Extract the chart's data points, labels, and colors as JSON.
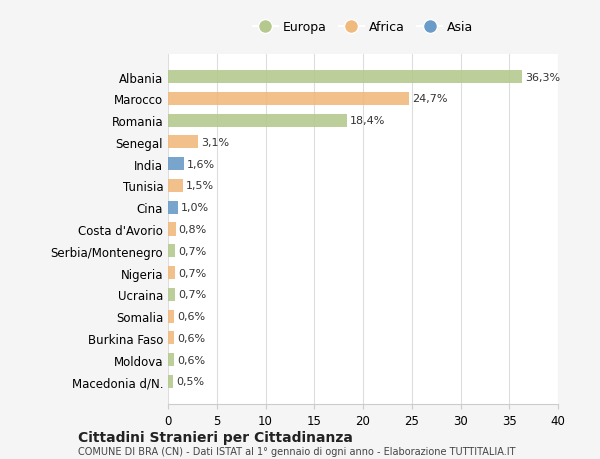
{
  "categories": [
    "Albania",
    "Marocco",
    "Romania",
    "Senegal",
    "India",
    "Tunisia",
    "Cina",
    "Costa d'Avorio",
    "Serbia/Montenegro",
    "Nigeria",
    "Ucraina",
    "Somalia",
    "Burkina Faso",
    "Moldova",
    "Macedonia d/N."
  ],
  "values": [
    36.3,
    24.7,
    18.4,
    3.1,
    1.6,
    1.5,
    1.0,
    0.8,
    0.7,
    0.7,
    0.7,
    0.6,
    0.6,
    0.6,
    0.5
  ],
  "labels": [
    "36,3%",
    "24,7%",
    "18,4%",
    "3,1%",
    "1,6%",
    "1,5%",
    "1,0%",
    "0,8%",
    "0,7%",
    "0,7%",
    "0,7%",
    "0,6%",
    "0,6%",
    "0,6%",
    "0,5%"
  ],
  "continents": [
    "Europa",
    "Africa",
    "Europa",
    "Africa",
    "Asia",
    "Africa",
    "Asia",
    "Africa",
    "Europa",
    "Africa",
    "Europa",
    "Africa",
    "Africa",
    "Europa",
    "Europa"
  ],
  "colors": {
    "Europa": "#b5c98e",
    "Africa": "#f0b97e",
    "Asia": "#6b9bc8"
  },
  "xlim": [
    0,
    40
  ],
  "xticks": [
    0,
    5,
    10,
    15,
    20,
    25,
    30,
    35,
    40
  ],
  "title1": "Cittadini Stranieri per Cittadinanza",
  "title2": "COMUNE DI BRA (CN) - Dati ISTAT al 1° gennaio di ogni anno - Elaborazione TUTTITALIA.IT",
  "bg_color": "#f5f5f5",
  "plot_bg_color": "#ffffff",
  "grid_color": "#dddddd"
}
